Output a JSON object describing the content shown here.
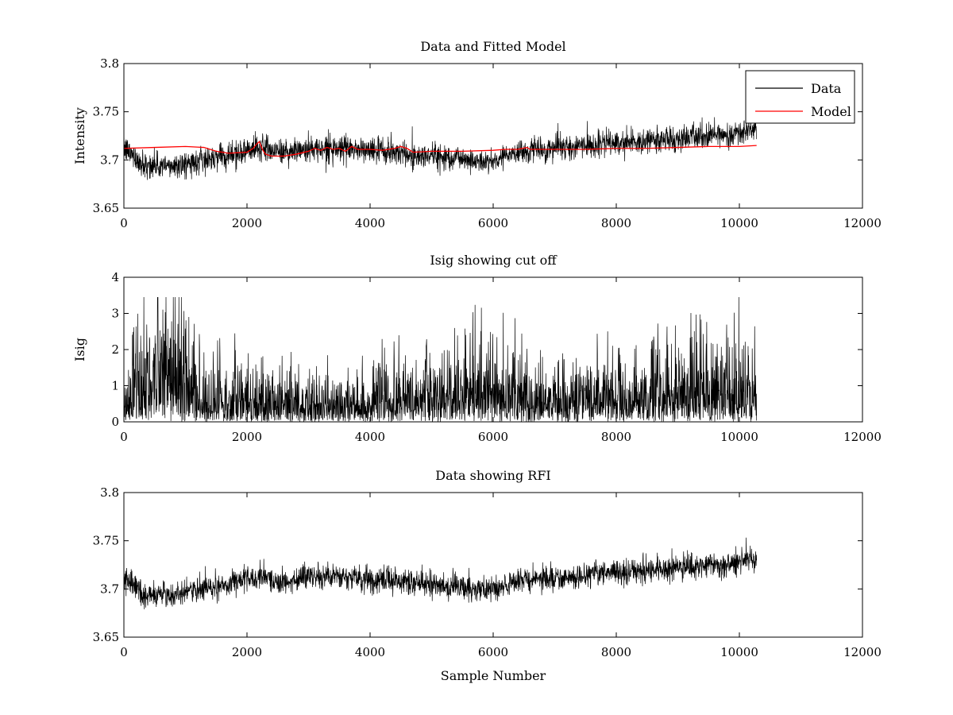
{
  "chart_data": [
    {
      "type": "line",
      "title": "Data and Fitted Model",
      "xlabel": "",
      "ylabel": "Intensity",
      "xlim": [
        0,
        12000
      ],
      "ylim": [
        3.65,
        3.8
      ],
      "xticks": [
        0,
        2000,
        4000,
        6000,
        8000,
        10000,
        12000
      ],
      "yticks": [
        3.65,
        3.7,
        3.75,
        3.8
      ],
      "xtick_labels": [
        "0",
        "2000",
        "4000",
        "6000",
        "8000",
        "10000",
        "12000"
      ],
      "ytick_labels": [
        "3.65",
        "3.7",
        "3.75",
        "3.8"
      ],
      "legend": {
        "position": "top-right",
        "entries": [
          "Data",
          "Model"
        ]
      },
      "series": [
        {
          "name": "Data",
          "color": "#000000",
          "noise": 0.012,
          "x_end": 10280,
          "trend": [
            [
              0,
              3.712
            ],
            [
              150,
              3.705
            ],
            [
              300,
              3.695
            ],
            [
              700,
              3.693
            ],
            [
              1200,
              3.698
            ],
            [
              1600,
              3.705
            ],
            [
              2000,
              3.71
            ],
            [
              2300,
              3.713
            ],
            [
              2600,
              3.708
            ],
            [
              3000,
              3.712
            ],
            [
              3500,
              3.712
            ],
            [
              4000,
              3.71
            ],
            [
              4500,
              3.708
            ],
            [
              4700,
              3.703
            ],
            [
              5000,
              3.705
            ],
            [
              5500,
              3.702
            ],
            [
              5900,
              3.697
            ],
            [
              6100,
              3.703
            ],
            [
              6500,
              3.71
            ],
            [
              7000,
              3.712
            ],
            [
              7500,
              3.715
            ],
            [
              8000,
              3.718
            ],
            [
              8500,
              3.72
            ],
            [
              9000,
              3.722
            ],
            [
              9500,
              3.725
            ],
            [
              10000,
              3.728
            ],
            [
              10280,
              3.732
            ]
          ]
        },
        {
          "name": "Model",
          "color": "#ff0000",
          "x": [
            0,
            500,
            1000,
            1300,
            1500,
            1700,
            2000,
            2100,
            2150,
            2200,
            2250,
            2300,
            2400,
            2600,
            2800,
            3000,
            3100,
            3200,
            3300,
            3400,
            3500,
            3600,
            3700,
            3800,
            4000,
            4200,
            4400,
            4500,
            4600,
            4700,
            5000,
            5500,
            6000,
            6200,
            6400,
            6550,
            6600,
            6700,
            7000,
            7500,
            8000,
            8500,
            9000,
            9500,
            10000,
            10280
          ],
          "y": [
            3.712,
            3.713,
            3.714,
            3.713,
            3.709,
            3.707,
            3.708,
            3.712,
            3.716,
            3.719,
            3.711,
            3.706,
            3.704,
            3.704,
            3.706,
            3.709,
            3.712,
            3.71,
            3.713,
            3.711,
            3.712,
            3.709,
            3.714,
            3.711,
            3.711,
            3.71,
            3.712,
            3.714,
            3.712,
            3.708,
            3.709,
            3.709,
            3.71,
            3.711,
            3.711,
            3.713,
            3.711,
            3.711,
            3.711,
            3.711,
            3.712,
            3.712,
            3.713,
            3.714,
            3.714,
            3.715
          ]
        }
      ]
    },
    {
      "type": "line",
      "title": "Isig showing cut off",
      "xlabel": "",
      "ylabel": "Isig",
      "xlim": [
        0,
        12000
      ],
      "ylim": [
        0,
        4
      ],
      "xticks": [
        0,
        2000,
        4000,
        6000,
        8000,
        10000,
        12000
      ],
      "yticks": [
        0,
        1,
        2,
        3,
        4
      ],
      "xtick_labels": [
        "0",
        "2000",
        "4000",
        "6000",
        "8000",
        "10000",
        "12000"
      ],
      "ytick_labels": [
        "0",
        "1",
        "2",
        "3",
        "4"
      ],
      "series": [
        {
          "name": "Isig",
          "color": "#000000",
          "x_end": 10280,
          "envelope": [
            [
              0,
              1.0
            ],
            [
              200,
              1.9
            ],
            [
              300,
              2.6
            ],
            [
              500,
              2.4
            ],
            [
              750,
              2.8
            ],
            [
              900,
              2.3
            ],
            [
              1100,
              1.9
            ],
            [
              1300,
              1.2
            ],
            [
              2000,
              1.2
            ],
            [
              2500,
              1.1
            ],
            [
              3000,
              1.0
            ],
            [
              4000,
              1.0
            ],
            [
              4600,
              1.3
            ],
            [
              5000,
              1.3
            ],
            [
              5500,
              1.6
            ],
            [
              6000,
              1.8
            ],
            [
              6500,
              1.3
            ],
            [
              7000,
              1.0
            ],
            [
              7500,
              1.3
            ],
            [
              8000,
              1.4
            ],
            [
              9000,
              1.7
            ],
            [
              9500,
              1.7
            ],
            [
              10280,
              1.7
            ]
          ]
        }
      ]
    },
    {
      "type": "line",
      "title": "Data showing RFI",
      "xlabel": "Sample Number",
      "ylabel": "",
      "xlim": [
        0,
        12000
      ],
      "ylim": [
        3.65,
        3.8
      ],
      "xticks": [
        0,
        2000,
        4000,
        6000,
        8000,
        10000,
        12000
      ],
      "yticks": [
        3.65,
        3.7,
        3.75,
        3.8
      ],
      "xtick_labels": [
        "0",
        "2000",
        "4000",
        "6000",
        "8000",
        "10000",
        "12000"
      ],
      "ytick_labels": [
        "3.65",
        "3.7",
        "3.75",
        "3.8"
      ],
      "series": [
        {
          "name": "Data",
          "color": "#000000",
          "noise": 0.012,
          "x_end": 10280,
          "trend": [
            [
              0,
              3.712
            ],
            [
              150,
              3.705
            ],
            [
              300,
              3.695
            ],
            [
              700,
              3.693
            ],
            [
              1200,
              3.698
            ],
            [
              1600,
              3.705
            ],
            [
              2000,
              3.71
            ],
            [
              2300,
              3.713
            ],
            [
              2600,
              3.708
            ],
            [
              3000,
              3.712
            ],
            [
              3500,
              3.712
            ],
            [
              4000,
              3.71
            ],
            [
              4500,
              3.708
            ],
            [
              4700,
              3.703
            ],
            [
              5000,
              3.705
            ],
            [
              5500,
              3.702
            ],
            [
              5900,
              3.697
            ],
            [
              6100,
              3.703
            ],
            [
              6500,
              3.71
            ],
            [
              7000,
              3.712
            ],
            [
              7500,
              3.715
            ],
            [
              8000,
              3.718
            ],
            [
              8500,
              3.72
            ],
            [
              9000,
              3.722
            ],
            [
              9500,
              3.725
            ],
            [
              10000,
              3.728
            ],
            [
              10280,
              3.732
            ]
          ]
        }
      ]
    }
  ]
}
